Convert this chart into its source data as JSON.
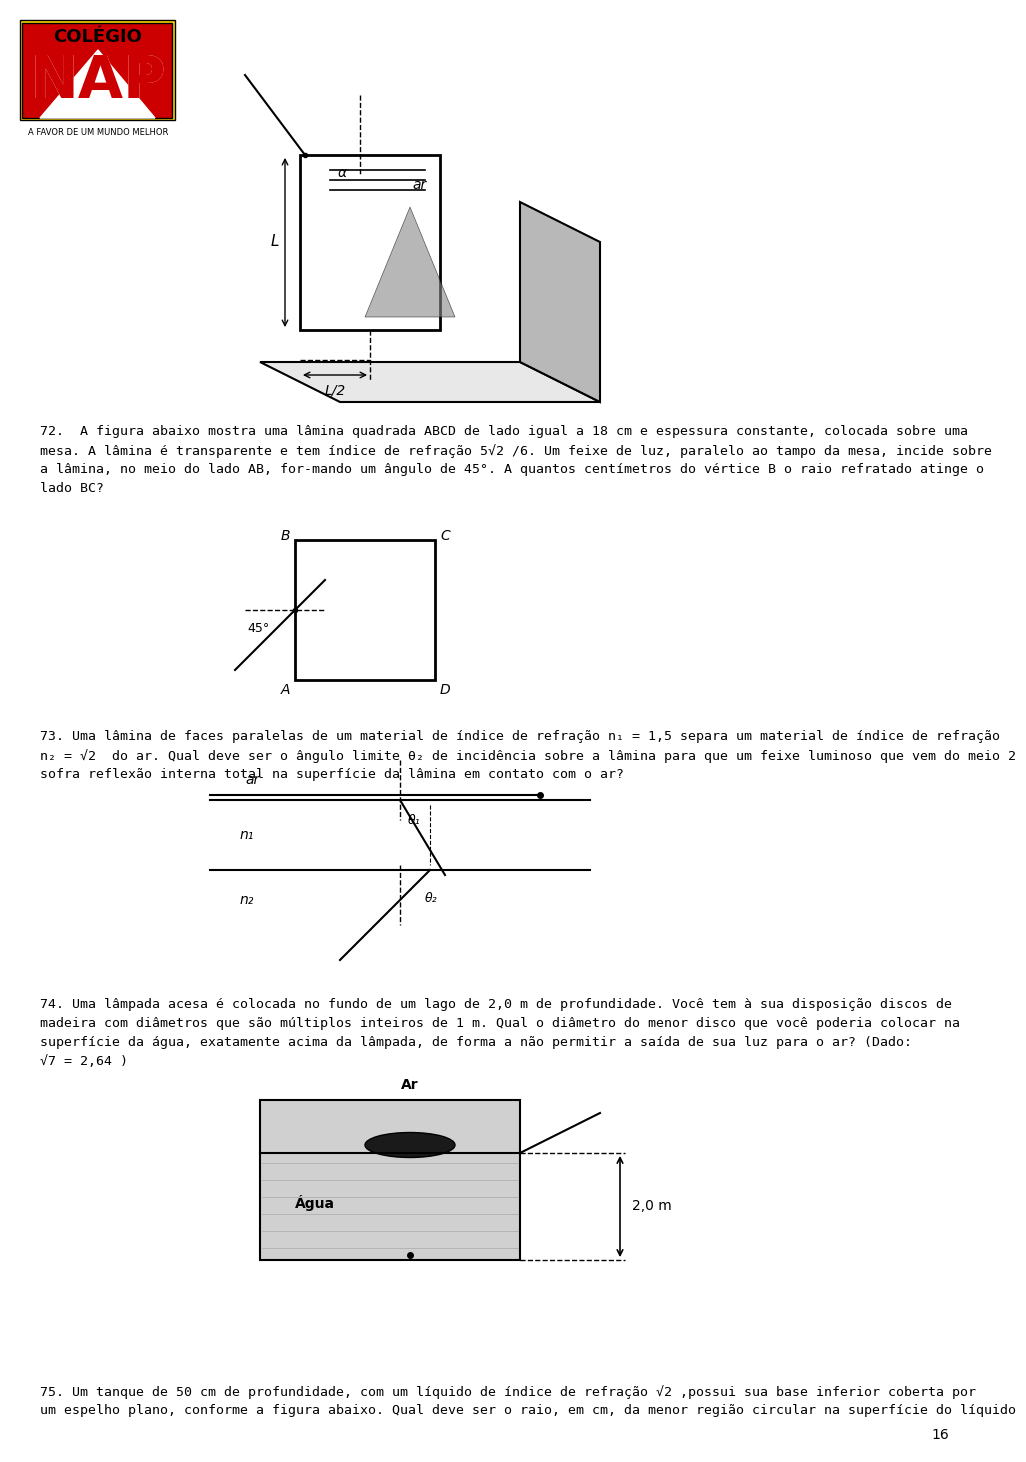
{
  "bg_color": "#ffffff",
  "page_number": "16",
  "logo_text": "COLÉGIO",
  "logo_subtext": "A FAVOR DE UM MUNDO MELHOR",
  "q72_text": "72.  A figura abaixo mostra uma lâmina quadrada ABCD de lado igual a 18 cm e espessura constante, colocada sobre uma\nmesa. A lâmina é transparente e tem índice de refração 5√2 /6. Um feixe de luz, paralelo ao tampo da mesa, incide sobre\na lâmina, no meio do lado AB, for-mando um ângulo de 45°. A quantos centímetros do vértice B o raio refratado atinge o\nlado BC?",
  "q73_text": "73. Uma lâmina de faces paralelas de um material de índice de refração n₁ = 1,5 separa um material de índice de refração\nn₂ = √2  do ar. Qual deve ser o ângulo limite θ₂ de incidência sobre a lâmina para que um feixe luminoso que vem do meio 2\nsofra reflexão interna total na superfície da lâmina em contato com o ar?",
  "q74_text": "74. Uma lâmpada acesa é colocada no fundo de um lago de 2,0 m de profundidade. Você tem à sua disposição discos de\nmadeira com diâmetros que são múltiplos inteiros de 1 m. Qual o diâmetro do menor disco que você poderia colocar na\nsuperfície da água, exatamente acima da lâmpada, de forma a não permitir a saída de sua luz para o ar? (Dado:\n√7 = 2,64 )",
  "q75_text": "75. Um tanque de 50 cm de profundidade, com um líquido de índice de refração √2 ,possui sua base inferior coberta por\num espelho plano, conforme a figura abaixo. Qual deve ser o raio, em cm, da menor região circular na superfície do líquido"
}
